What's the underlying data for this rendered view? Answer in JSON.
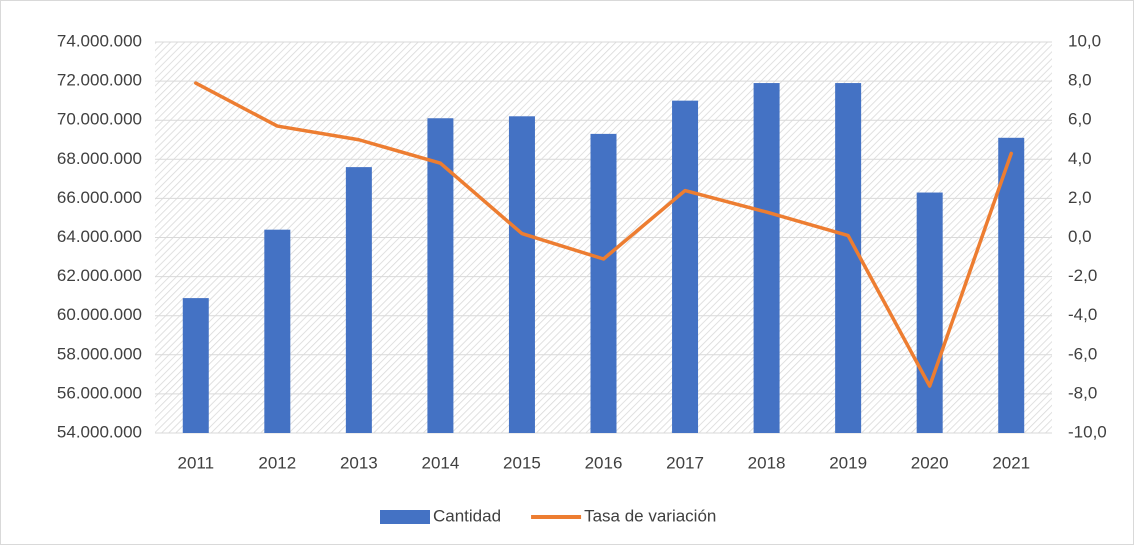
{
  "chart_data": {
    "type": "bar",
    "categories": [
      "2011",
      "2012",
      "2013",
      "2014",
      "2015",
      "2016",
      "2017",
      "2018",
      "2019",
      "2020",
      "2021"
    ],
    "series": [
      {
        "name": "Cantidad",
        "type": "bar",
        "color": "#4472c4",
        "values": [
          60900000,
          64400000,
          67600000,
          70100000,
          70200000,
          69300000,
          71000000,
          71900000,
          71900000,
          66300000,
          69100000
        ]
      },
      {
        "name": "Tasa de variación",
        "type": "line",
        "axis": "y2",
        "color": "#ed7d31",
        "values": [
          7.9,
          5.7,
          5.0,
          3.8,
          0.2,
          -1.1,
          2.4,
          1.3,
          0.1,
          -7.6,
          4.3
        ]
      }
    ],
    "ylim": [
      54000000,
      74000000
    ],
    "yticks": [
      {
        "value": 54000000,
        "label": "54.000.000"
      },
      {
        "value": 56000000,
        "label": "56.000.000"
      },
      {
        "value": 58000000,
        "label": "58.000.000"
      },
      {
        "value": 60000000,
        "label": "60.000.000"
      },
      {
        "value": 62000000,
        "label": "62.000.000"
      },
      {
        "value": 64000000,
        "label": "64.000.000"
      },
      {
        "value": 66000000,
        "label": "66.000.000"
      },
      {
        "value": 68000000,
        "label": "68.000.000"
      },
      {
        "value": 70000000,
        "label": "70.000.000"
      },
      {
        "value": 72000000,
        "label": "72.000.000"
      },
      {
        "value": 74000000,
        "label": "74.000.000"
      }
    ],
    "y2lim": [
      -10,
      10
    ],
    "y2ticks": [
      {
        "value": -10,
        "label": "-10,0"
      },
      {
        "value": -8,
        "label": "-8,0"
      },
      {
        "value": -6,
        "label": "-6,0"
      },
      {
        "value": -4,
        "label": "-4,0"
      },
      {
        "value": -2,
        "label": "-2,0"
      },
      {
        "value": 0,
        "label": "0,0"
      },
      {
        "value": 2,
        "label": "2,0"
      },
      {
        "value": 4,
        "label": "4,0"
      },
      {
        "value": 6,
        "label": "6,0"
      },
      {
        "value": 8,
        "label": "8,0"
      },
      {
        "value": 10,
        "label": "10,0"
      }
    ],
    "grid": true,
    "legend": "bottom"
  }
}
